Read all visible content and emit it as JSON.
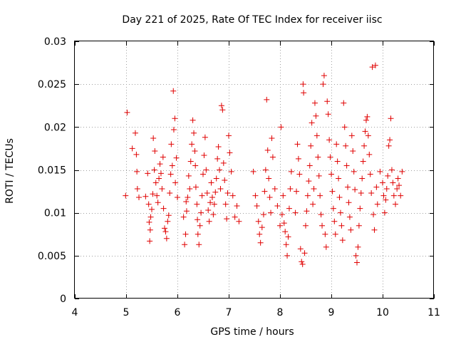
{
  "chart_data": {
    "type": "scatter",
    "title": "Day 221 of 2025, Rate Of TEC Index for receiver iisc",
    "xlabel": "GPS time / hours",
    "ylabel": "ROTI / TECUs",
    "xlim": [
      4,
      11
    ],
    "ylim": [
      0,
      0.03
    ],
    "xticks": [
      4,
      5,
      6,
      7,
      8,
      9,
      10,
      11
    ],
    "xtick_labels": [
      "4",
      "5",
      "6",
      "7",
      "8",
      "9",
      "10",
      "11"
    ],
    "yticks": [
      0,
      0.005,
      0.01,
      0.015,
      0.02,
      0.025,
      0.03
    ],
    "ytick_labels": [
      "0",
      "0.005",
      "0.01",
      "0.015",
      "0.02",
      "0.025",
      "0.03"
    ],
    "grid": true,
    "marker": "plus",
    "color": "#e00000",
    "series": [
      {
        "name": "ROTI",
        "points": [
          [
            4.99,
            0.012
          ],
          [
            5.02,
            0.0217
          ],
          [
            5.12,
            0.0175
          ],
          [
            5.18,
            0.0193
          ],
          [
            5.2,
            0.0168
          ],
          [
            5.21,
            0.0148
          ],
          [
            5.22,
            0.0128
          ],
          [
            5.25,
            0.0118
          ],
          [
            5.38,
            0.0119
          ],
          [
            5.42,
            0.0146
          ],
          [
            5.44,
            0.011
          ],
          [
            5.45,
            0.0089
          ],
          [
            5.46,
            0.0067
          ],
          [
            5.47,
            0.008
          ],
          [
            5.48,
            0.0095
          ],
          [
            5.5,
            0.0104
          ],
          [
            5.52,
            0.0122
          ],
          [
            5.53,
            0.0187
          ],
          [
            5.55,
            0.015
          ],
          [
            5.56,
            0.0172
          ],
          [
            5.58,
            0.0135
          ],
          [
            5.6,
            0.012
          ],
          [
            5.62,
            0.0112
          ],
          [
            5.64,
            0.014
          ],
          [
            5.66,
            0.0157
          ],
          [
            5.68,
            0.0146
          ],
          [
            5.7,
            0.0128
          ],
          [
            5.72,
            0.0165
          ],
          [
            5.73,
            0.0105
          ],
          [
            5.75,
            0.0082
          ],
          [
            5.77,
            0.0078
          ],
          [
            5.79,
            0.007
          ],
          [
            5.81,
            0.009
          ],
          [
            5.83,
            0.0097
          ],
          [
            5.85,
            0.0123
          ],
          [
            5.87,
            0.0145
          ],
          [
            5.88,
            0.018
          ],
          [
            5.9,
            0.0155
          ],
          [
            5.92,
            0.0242
          ],
          [
            5.93,
            0.0197
          ],
          [
            5.95,
            0.021
          ],
          [
            5.96,
            0.0135
          ],
          [
            5.98,
            0.0164
          ],
          [
            6.0,
            0.0118
          ],
          [
            6.12,
            0.0095
          ],
          [
            6.14,
            0.0063
          ],
          [
            6.16,
            0.0075
          ],
          [
            6.17,
            0.0113
          ],
          [
            6.18,
            0.0102
          ],
          [
            6.2,
            0.0118
          ],
          [
            6.22,
            0.0143
          ],
          [
            6.24,
            0.0128
          ],
          [
            6.26,
            0.016
          ],
          [
            6.28,
            0.018
          ],
          [
            6.3,
            0.0208
          ],
          [
            6.32,
            0.0193
          ],
          [
            6.34,
            0.0172
          ],
          [
            6.35,
            0.0155
          ],
          [
            6.36,
            0.013
          ],
          [
            6.38,
            0.011
          ],
          [
            6.39,
            0.0092
          ],
          [
            6.4,
            0.0075
          ],
          [
            6.42,
            0.0063
          ],
          [
            6.44,
            0.0085
          ],
          [
            6.46,
            0.01
          ],
          [
            6.48,
            0.012
          ],
          [
            6.5,
            0.0145
          ],
          [
            6.52,
            0.0167
          ],
          [
            6.54,
            0.0188
          ],
          [
            6.56,
            0.015
          ],
          [
            6.58,
            0.0123
          ],
          [
            6.6,
            0.0103
          ],
          [
            6.62,
            0.009
          ],
          [
            6.64,
            0.0112
          ],
          [
            6.66,
            0.0135
          ],
          [
            6.68,
            0.0118
          ],
          [
            6.7,
            0.0098
          ],
          [
            6.72,
            0.011
          ],
          [
            6.74,
            0.0124
          ],
          [
            6.76,
            0.014
          ],
          [
            6.78,
            0.0163
          ],
          [
            6.8,
            0.0177
          ],
          [
            6.82,
            0.015
          ],
          [
            6.84,
            0.0128
          ],
          [
            6.86,
            0.0225
          ],
          [
            6.88,
            0.022
          ],
          [
            6.9,
            0.0158
          ],
          [
            6.92,
            0.0138
          ],
          [
            6.94,
            0.011
          ],
          [
            6.96,
            0.0093
          ],
          [
            6.98,
            0.0123
          ],
          [
            7.0,
            0.019
          ],
          [
            7.02,
            0.017
          ],
          [
            7.05,
            0.0148
          ],
          [
            7.08,
            0.012
          ],
          [
            7.12,
            0.0095
          ],
          [
            7.16,
            0.0108
          ],
          [
            7.2,
            0.009
          ],
          [
            7.48,
            0.0148
          ],
          [
            7.52,
            0.012
          ],
          [
            7.55,
            0.0108
          ],
          [
            7.58,
            0.009
          ],
          [
            7.6,
            0.0075
          ],
          [
            7.62,
            0.0065
          ],
          [
            7.65,
            0.0083
          ],
          [
            7.68,
            0.0098
          ],
          [
            7.7,
            0.0125
          ],
          [
            7.72,
            0.015
          ],
          [
            7.74,
            0.0232
          ],
          [
            7.76,
            0.0173
          ],
          [
            7.78,
            0.014
          ],
          [
            7.8,
            0.0118
          ],
          [
            7.82,
            0.01
          ],
          [
            7.84,
            0.0187
          ],
          [
            7.86,
            0.0165
          ],
          [
            7.9,
            0.0128
          ],
          [
            7.95,
            0.0108
          ],
          [
            8.0,
            0.0085
          ],
          [
            8.02,
            0.02
          ],
          [
            8.04,
            0.0098
          ],
          [
            8.06,
            0.012
          ],
          [
            8.08,
            0.0088
          ],
          [
            8.1,
            0.0078
          ],
          [
            8.12,
            0.0063
          ],
          [
            8.14,
            0.005
          ],
          [
            8.16,
            0.0072
          ],
          [
            8.18,
            0.0105
          ],
          [
            8.2,
            0.0128
          ],
          [
            8.22,
            0.0148
          ],
          [
            8.3,
            0.01
          ],
          [
            8.32,
            0.0125
          ],
          [
            8.34,
            0.018
          ],
          [
            8.36,
            0.0163
          ],
          [
            8.38,
            0.0145
          ],
          [
            8.4,
            0.0058
          ],
          [
            8.42,
            0.0043
          ],
          [
            8.44,
            0.004
          ],
          [
            8.45,
            0.025
          ],
          [
            8.46,
            0.024
          ],
          [
            8.48,
            0.0053
          ],
          [
            8.5,
            0.0085
          ],
          [
            8.52,
            0.0102
          ],
          [
            8.54,
            0.012
          ],
          [
            8.56,
            0.0137
          ],
          [
            8.58,
            0.0155
          ],
          [
            8.6,
            0.0178
          ],
          [
            8.62,
            0.0205
          ],
          [
            8.64,
            0.011
          ],
          [
            8.66,
            0.0128
          ],
          [
            8.68,
            0.0228
          ],
          [
            8.7,
            0.0213
          ],
          [
            8.72,
            0.019
          ],
          [
            8.74,
            0.0165
          ],
          [
            8.76,
            0.0143
          ],
          [
            8.78,
            0.012
          ],
          [
            8.8,
            0.0098
          ],
          [
            8.82,
            0.0085
          ],
          [
            8.84,
            0.025
          ],
          [
            8.86,
            0.026
          ],
          [
            8.88,
            0.0075
          ],
          [
            8.9,
            0.006
          ],
          [
            8.92,
            0.023
          ],
          [
            8.94,
            0.0215
          ],
          [
            8.96,
            0.0185
          ],
          [
            8.98,
            0.0165
          ],
          [
            9.0,
            0.0145
          ],
          [
            9.02,
            0.0125
          ],
          [
            9.04,
            0.0105
          ],
          [
            9.06,
            0.009
          ],
          [
            9.08,
            0.0075
          ],
          [
            9.1,
            0.018
          ],
          [
            9.12,
            0.016
          ],
          [
            9.14,
            0.014
          ],
          [
            9.16,
            0.0118
          ],
          [
            9.18,
            0.01
          ],
          [
            9.2,
            0.0085
          ],
          [
            9.22,
            0.0068
          ],
          [
            9.24,
            0.0228
          ],
          [
            9.26,
            0.02
          ],
          [
            9.28,
            0.0178
          ],
          [
            9.3,
            0.0155
          ],
          [
            9.32,
            0.013
          ],
          [
            9.34,
            0.0112
          ],
          [
            9.36,
            0.0095
          ],
          [
            9.38,
            0.008
          ],
          [
            9.4,
            0.019
          ],
          [
            9.42,
            0.0172
          ],
          [
            9.44,
            0.0148
          ],
          [
            9.46,
            0.0127
          ],
          [
            9.48,
            0.005
          ],
          [
            9.5,
            0.0042
          ],
          [
            9.52,
            0.006
          ],
          [
            9.54,
            0.0085
          ],
          [
            9.56,
            0.0105
          ],
          [
            9.58,
            0.0123
          ],
          [
            9.6,
            0.014
          ],
          [
            9.62,
            0.016
          ],
          [
            9.64,
            0.0178
          ],
          [
            9.66,
            0.0195
          ],
          [
            9.68,
            0.0208
          ],
          [
            9.7,
            0.0212
          ],
          [
            9.72,
            0.019
          ],
          [
            9.74,
            0.0168
          ],
          [
            9.76,
            0.0145
          ],
          [
            9.78,
            0.0123
          ],
          [
            9.8,
            0.027
          ],
          [
            9.82,
            0.0098
          ],
          [
            9.84,
            0.008
          ],
          [
            9.86,
            0.0272
          ],
          [
            9.88,
            0.013
          ],
          [
            9.9,
            0.011
          ],
          [
            9.95,
            0.0148
          ],
          [
            10.0,
            0.0135
          ],
          [
            10.02,
            0.012
          ],
          [
            10.04,
            0.01
          ],
          [
            10.06,
            0.0115
          ],
          [
            10.08,
            0.0128
          ],
          [
            10.1,
            0.0143
          ],
          [
            10.12,
            0.0178
          ],
          [
            10.14,
            0.0185
          ],
          [
            10.16,
            0.021
          ],
          [
            10.18,
            0.015
          ],
          [
            10.2,
            0.0135
          ],
          [
            10.22,
            0.012
          ],
          [
            10.25,
            0.011
          ],
          [
            10.28,
            0.0128
          ],
          [
            10.3,
            0.014
          ],
          [
            10.32,
            0.0132
          ],
          [
            10.35,
            0.012
          ],
          [
            10.38,
            0.0148
          ]
        ]
      }
    ]
  }
}
